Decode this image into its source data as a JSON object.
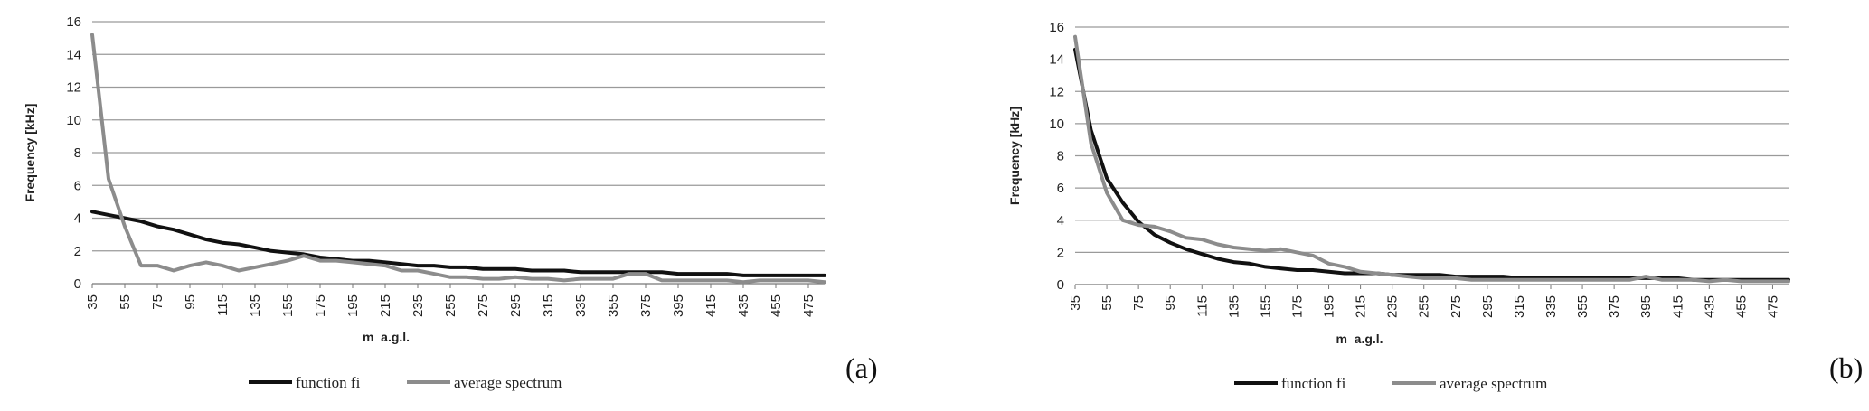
{
  "charts_common": {
    "ylabel": "Frequency [kHz]",
    "xlabel": "m  a.g.l.",
    "legend": [
      "function fi",
      "average spectrum"
    ],
    "colors": {
      "function fi": "#111111",
      "average spectrum": "#8c8c8c",
      "grid": "#9a9a9a"
    }
  },
  "chart_data": [
    {
      "panel": "(a)",
      "type": "line",
      "x": [
        35,
        45,
        55,
        65,
        75,
        85,
        95,
        105,
        115,
        125,
        135,
        145,
        155,
        165,
        175,
        185,
        195,
        205,
        215,
        225,
        235,
        245,
        255,
        265,
        275,
        285,
        295,
        305,
        315,
        325,
        335,
        345,
        355,
        365,
        375,
        385,
        395,
        405,
        415,
        425,
        435,
        445,
        455,
        465,
        475,
        485
      ],
      "x_tick_labels": [
        "35",
        "55",
        "75",
        "95",
        "115",
        "135",
        "155",
        "175",
        "195",
        "215",
        "235",
        "255",
        "275",
        "295",
        "315",
        "335",
        "355",
        "375",
        "395",
        "415",
        "435",
        "455",
        "475"
      ],
      "ylabel": "Frequency [kHz]",
      "xlabel": "m  a.g.l.",
      "ylim": [
        0,
        16
      ],
      "y_ticks": [
        0,
        2,
        4,
        6,
        8,
        10,
        12,
        14,
        16
      ],
      "grid": true,
      "legend_position": "bottom",
      "series": [
        {
          "name": "function fi",
          "values": [
            4.4,
            4.2,
            4.0,
            3.8,
            3.5,
            3.3,
            3.0,
            2.7,
            2.5,
            2.4,
            2.2,
            2.0,
            1.9,
            1.8,
            1.6,
            1.5,
            1.4,
            1.4,
            1.3,
            1.2,
            1.1,
            1.1,
            1.0,
            1.0,
            0.9,
            0.9,
            0.9,
            0.8,
            0.8,
            0.8,
            0.7,
            0.7,
            0.7,
            0.7,
            0.7,
            0.7,
            0.6,
            0.6,
            0.6,
            0.6,
            0.5,
            0.5,
            0.5,
            0.5,
            0.5,
            0.5
          ]
        },
        {
          "name": "average spectrum",
          "values": [
            15.2,
            6.4,
            3.5,
            1.1,
            1.1,
            0.8,
            1.1,
            1.3,
            1.1,
            0.8,
            1.0,
            1.2,
            1.4,
            1.7,
            1.4,
            1.4,
            1.3,
            1.2,
            1.1,
            0.8,
            0.8,
            0.6,
            0.4,
            0.4,
            0.3,
            0.3,
            0.4,
            0.3,
            0.3,
            0.2,
            0.3,
            0.3,
            0.3,
            0.6,
            0.6,
            0.2,
            0.2,
            0.2,
            0.2,
            0.2,
            0.1,
            0.2,
            0.2,
            0.2,
            0.2,
            0.1
          ]
        }
      ]
    },
    {
      "panel": "(b)",
      "type": "line",
      "x": [
        35,
        45,
        55,
        65,
        75,
        85,
        95,
        105,
        115,
        125,
        135,
        145,
        155,
        165,
        175,
        185,
        195,
        205,
        215,
        225,
        235,
        245,
        255,
        265,
        275,
        285,
        295,
        305,
        315,
        325,
        335,
        345,
        355,
        365,
        375,
        385,
        395,
        405,
        415,
        425,
        435,
        445,
        455,
        465,
        475,
        485
      ],
      "x_tick_labels": [
        "35",
        "55",
        "75",
        "95",
        "115",
        "135",
        "155",
        "175",
        "195",
        "215",
        "235",
        "255",
        "275",
        "295",
        "315",
        "335",
        "355",
        "375",
        "395",
        "415",
        "435",
        "455",
        "475"
      ],
      "ylabel": "Frequency [kHz]",
      "xlabel": "m  a.g.l.",
      "ylim": [
        0,
        16
      ],
      "y_ticks": [
        0,
        2,
        4,
        6,
        8,
        10,
        12,
        14,
        16
      ],
      "grid": true,
      "legend_position": "bottom",
      "series": [
        {
          "name": "function fi",
          "values": [
            14.6,
            9.6,
            6.6,
            5.1,
            3.9,
            3.1,
            2.6,
            2.2,
            1.9,
            1.6,
            1.4,
            1.3,
            1.1,
            1.0,
            0.9,
            0.9,
            0.8,
            0.7,
            0.7,
            0.7,
            0.6,
            0.6,
            0.6,
            0.6,
            0.5,
            0.5,
            0.5,
            0.5,
            0.4,
            0.4,
            0.4,
            0.4,
            0.4,
            0.4,
            0.4,
            0.4,
            0.4,
            0.4,
            0.4,
            0.3,
            0.3,
            0.3,
            0.3,
            0.3,
            0.3,
            0.3
          ]
        },
        {
          "name": "average spectrum",
          "values": [
            15.4,
            8.8,
            5.7,
            4.0,
            3.7,
            3.6,
            3.3,
            2.9,
            2.8,
            2.5,
            2.3,
            2.2,
            2.1,
            2.2,
            2.0,
            1.8,
            1.3,
            1.1,
            0.8,
            0.7,
            0.6,
            0.5,
            0.4,
            0.4,
            0.4,
            0.3,
            0.3,
            0.3,
            0.3,
            0.3,
            0.3,
            0.3,
            0.3,
            0.3,
            0.3,
            0.3,
            0.5,
            0.3,
            0.3,
            0.3,
            0.2,
            0.3,
            0.2,
            0.2,
            0.2,
            0.2
          ]
        }
      ]
    }
  ]
}
